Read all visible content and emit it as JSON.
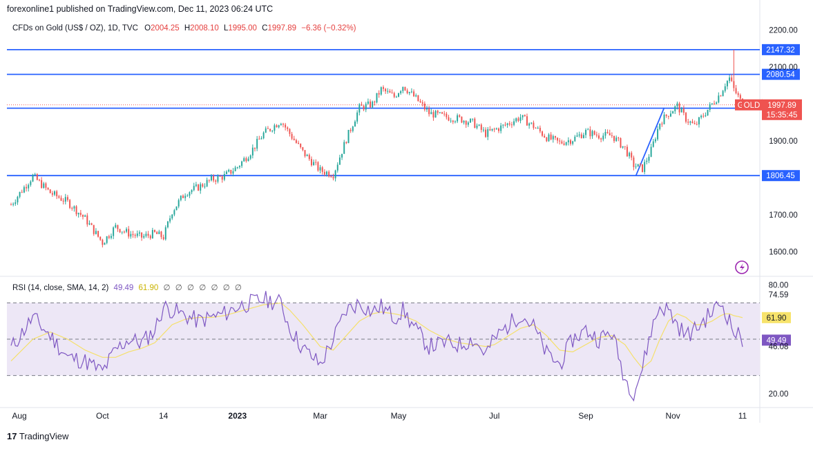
{
  "header": {
    "publisher": "forexonline1 published on TradingView.com, Dec 11, 2023 06:24 UTC"
  },
  "legend": {
    "symbol": "CFDs on Gold (US$ / OZ), 1D, TVC",
    "open_label": "O",
    "open": "2004.25",
    "high_label": "H",
    "high": "2008.10",
    "low_label": "L",
    "low": "1995.00",
    "close_label": "C",
    "close": "1997.89",
    "change": "−6.36 (−0.32%)"
  },
  "rsi_legend": {
    "title": "RSI (14, close, SMA, 14, 2)",
    "rsi_value": "49.49",
    "sma_value": "61.90",
    "na_marks": [
      "∅",
      "∅",
      "∅",
      "∅",
      "∅",
      "∅",
      "∅"
    ]
  },
  "footer": {
    "brand": "TradingView",
    "logo": "17"
  },
  "colors": {
    "up": "#26a69a",
    "down": "#ef5350",
    "level_line": "#2962ff",
    "rsi_line": "#7e57c2",
    "rsi_sma": "#f5e06b",
    "rsi_band": "#ede7f6",
    "label_bg": "#2962ff",
    "price_tag": "#ef5350"
  },
  "chart_data": [
    {
      "type": "candlestick",
      "title": "CFDs on Gold (US$ / OZ), 1D, TVC",
      "ylim": [
        1575,
        2220
      ],
      "y_ticks": [
        2200,
        2100,
        1900,
        1700,
        1600
      ],
      "y_tick_labels": [
        "2200.00",
        "2100.00",
        "1900.00",
        "1700.00",
        "1600.00"
      ],
      "x_tick_labels": [
        "Aug",
        "Oct",
        "14",
        "2023",
        "Mar",
        "May",
        "Jul",
        "Sep",
        "Nov",
        "11"
      ],
      "x_tick_index": [
        0,
        42,
        70,
        104,
        142,
        178,
        222,
        264,
        304,
        336
      ],
      "horizontal_levels": [
        {
          "value": 2147.32,
          "label": "2147.32"
        },
        {
          "value": 2080.54,
          "label": "2080.54"
        },
        {
          "value": 1988.85,
          "label": "1988.85"
        },
        {
          "value": 1806.45,
          "label": "1806.45"
        }
      ],
      "last_price": {
        "value": 1997.89,
        "symbol_label": "GOLD",
        "price_label": "1997.89",
        "countdown": "15:35:45"
      },
      "trendline": {
        "from_index": 287,
        "from": 1806,
        "to_index": 300,
        "to": 1990
      },
      "close_path": [
        [
          0,
          1728
        ],
        [
          10,
          1805
        ],
        [
          18,
          1760
        ],
        [
          26,
          1735
        ],
        [
          34,
          1690
        ],
        [
          42,
          1625
        ],
        [
          48,
          1668
        ],
        [
          54,
          1650
        ],
        [
          60,
          1640
        ],
        [
          66,
          1650
        ],
        [
          70,
          1640
        ],
        [
          74,
          1710
        ],
        [
          80,
          1760
        ],
        [
          86,
          1775
        ],
        [
          92,
          1795
        ],
        [
          98,
          1805
        ],
        [
          104,
          1830
        ],
        [
          110,
          1870
        ],
        [
          116,
          1920
        ],
        [
          124,
          1955
        ],
        [
          128,
          1920
        ],
        [
          134,
          1870
        ],
        [
          142,
          1820
        ],
        [
          148,
          1810
        ],
        [
          154,
          1905
        ],
        [
          160,
          1990
        ],
        [
          166,
          2000
        ],
        [
          170,
          2040
        ],
        [
          176,
          2020
        ],
        [
          180,
          2050
        ],
        [
          186,
          2015
        ],
        [
          192,
          1975
        ],
        [
          200,
          1965
        ],
        [
          206,
          1960
        ],
        [
          212,
          1950
        ],
        [
          218,
          1920
        ],
        [
          222,
          1930
        ],
        [
          226,
          1940
        ],
        [
          234,
          1965
        ],
        [
          240,
          1940
        ],
        [
          246,
          1910
        ],
        [
          252,
          1895
        ],
        [
          258,
          1905
        ],
        [
          264,
          1925
        ],
        [
          270,
          1915
        ],
        [
          276,
          1915
        ],
        [
          282,
          1880
        ],
        [
          286,
          1835
        ],
        [
          290,
          1825
        ],
        [
          294,
          1875
        ],
        [
          298,
          1950
        ],
        [
          302,
          1975
        ],
        [
          306,
          1995
        ],
        [
          310,
          1960
        ],
        [
          314,
          1940
        ],
        [
          318,
          1970
        ],
        [
          322,
          2000
        ],
        [
          326,
          2030
        ],
        [
          328,
          2055
        ],
        [
          330,
          2070
        ],
        [
          332,
          2040
        ],
        [
          334,
          2020
        ],
        [
          336,
          1998
        ]
      ]
    },
    {
      "type": "line",
      "title": "RSI (14, close, SMA, 14, 2)",
      "ylim": [
        15,
        82
      ],
      "y_ticks": [
        80,
        74.59,
        46.08,
        20
      ],
      "y_tick_labels": [
        "80.00",
        "74.59",
        "46.08",
        "20.00"
      ],
      "bands": [
        70,
        30
      ],
      "series": [
        {
          "name": "RSI",
          "points": [
            [
              0,
              45
            ],
            [
              10,
              62
            ],
            [
              18,
              52
            ],
            [
              26,
              40
            ],
            [
              34,
              38
            ],
            [
              42,
              32
            ],
            [
              48,
              44
            ],
            [
              54,
              50
            ],
            [
              60,
              48
            ],
            [
              66,
              55
            ],
            [
              70,
              68
            ],
            [
              74,
              66
            ],
            [
              80,
              63
            ],
            [
              86,
              60
            ],
            [
              92,
              62
            ],
            [
              98,
              64
            ],
            [
              104,
              68
            ],
            [
              110,
              70
            ],
            [
              116,
              72
            ],
            [
              124,
              70
            ],
            [
              128,
              56
            ],
            [
              134,
              45
            ],
            [
              142,
              36
            ],
            [
              148,
              50
            ],
            [
              154,
              66
            ],
            [
              160,
              70
            ],
            [
              166,
              65
            ],
            [
              170,
              68
            ],
            [
              176,
              62
            ],
            [
              180,
              66
            ],
            [
              186,
              55
            ],
            [
              192,
              46
            ],
            [
              200,
              48
            ],
            [
              206,
              47
            ],
            [
              212,
              50
            ],
            [
              218,
              42
            ],
            [
              222,
              50
            ],
            [
              226,
              55
            ],
            [
              234,
              64
            ],
            [
              240,
              57
            ],
            [
              246,
              42
            ],
            [
              252,
              36
            ],
            [
              258,
              50
            ],
            [
              264,
              55
            ],
            [
              270,
              50
            ],
            [
              276,
              54
            ],
            [
              282,
              28
            ],
            [
              286,
              21
            ],
            [
              290,
              34
            ],
            [
              294,
              55
            ],
            [
              298,
              68
            ],
            [
              302,
              66
            ],
            [
              306,
              58
            ],
            [
              310,
              52
            ],
            [
              314,
              55
            ],
            [
              318,
              60
            ],
            [
              322,
              65
            ],
            [
              326,
              70
            ],
            [
              328,
              66
            ],
            [
              330,
              60
            ],
            [
              332,
              54
            ],
            [
              334,
              52
            ],
            [
              336,
              49.49
            ]
          ]
        },
        {
          "name": "RSI-based MA",
          "points": [
            [
              0,
              38
            ],
            [
              10,
              50
            ],
            [
              18,
              54
            ],
            [
              26,
              50
            ],
            [
              34,
              44
            ],
            [
              42,
              40
            ],
            [
              48,
              40
            ],
            [
              54,
              43
            ],
            [
              60,
              45
            ],
            [
              66,
              48
            ],
            [
              70,
              53
            ],
            [
              74,
              58
            ],
            [
              80,
              61
            ],
            [
              86,
              62
            ],
            [
              92,
              62
            ],
            [
              98,
              63
            ],
            [
              104,
              65
            ],
            [
              110,
              67
            ],
            [
              116,
              69
            ],
            [
              124,
              70
            ],
            [
              128,
              66
            ],
            [
              134,
              58
            ],
            [
              142,
              46
            ],
            [
              148,
              44
            ],
            [
              154,
              52
            ],
            [
              160,
              60
            ],
            [
              166,
              64
            ],
            [
              170,
              65
            ],
            [
              176,
              64
            ],
            [
              180,
              63
            ],
            [
              186,
              60
            ],
            [
              192,
              55
            ],
            [
              200,
              50
            ],
            [
              206,
              48
            ],
            [
              212,
              47
            ],
            [
              218,
              46
            ],
            [
              222,
              47
            ],
            [
              226,
              50
            ],
            [
              234,
              56
            ],
            [
              240,
              58
            ],
            [
              246,
              52
            ],
            [
              252,
              44
            ],
            [
              258,
              43
            ],
            [
              264,
              47
            ],
            [
              270,
              51
            ],
            [
              276,
              52
            ],
            [
              282,
              47
            ],
            [
              286,
              40
            ],
            [
              290,
              34
            ],
            [
              294,
              38
            ],
            [
              298,
              50
            ],
            [
              302,
              60
            ],
            [
              306,
              64
            ],
            [
              310,
              62
            ],
            [
              314,
              58
            ],
            [
              318,
              58
            ],
            [
              322,
              60
            ],
            [
              326,
              63
            ],
            [
              328,
              64
            ],
            [
              330,
              64
            ],
            [
              332,
              63
            ],
            [
              334,
              62.5
            ],
            [
              336,
              61.9
            ]
          ]
        }
      ]
    }
  ]
}
